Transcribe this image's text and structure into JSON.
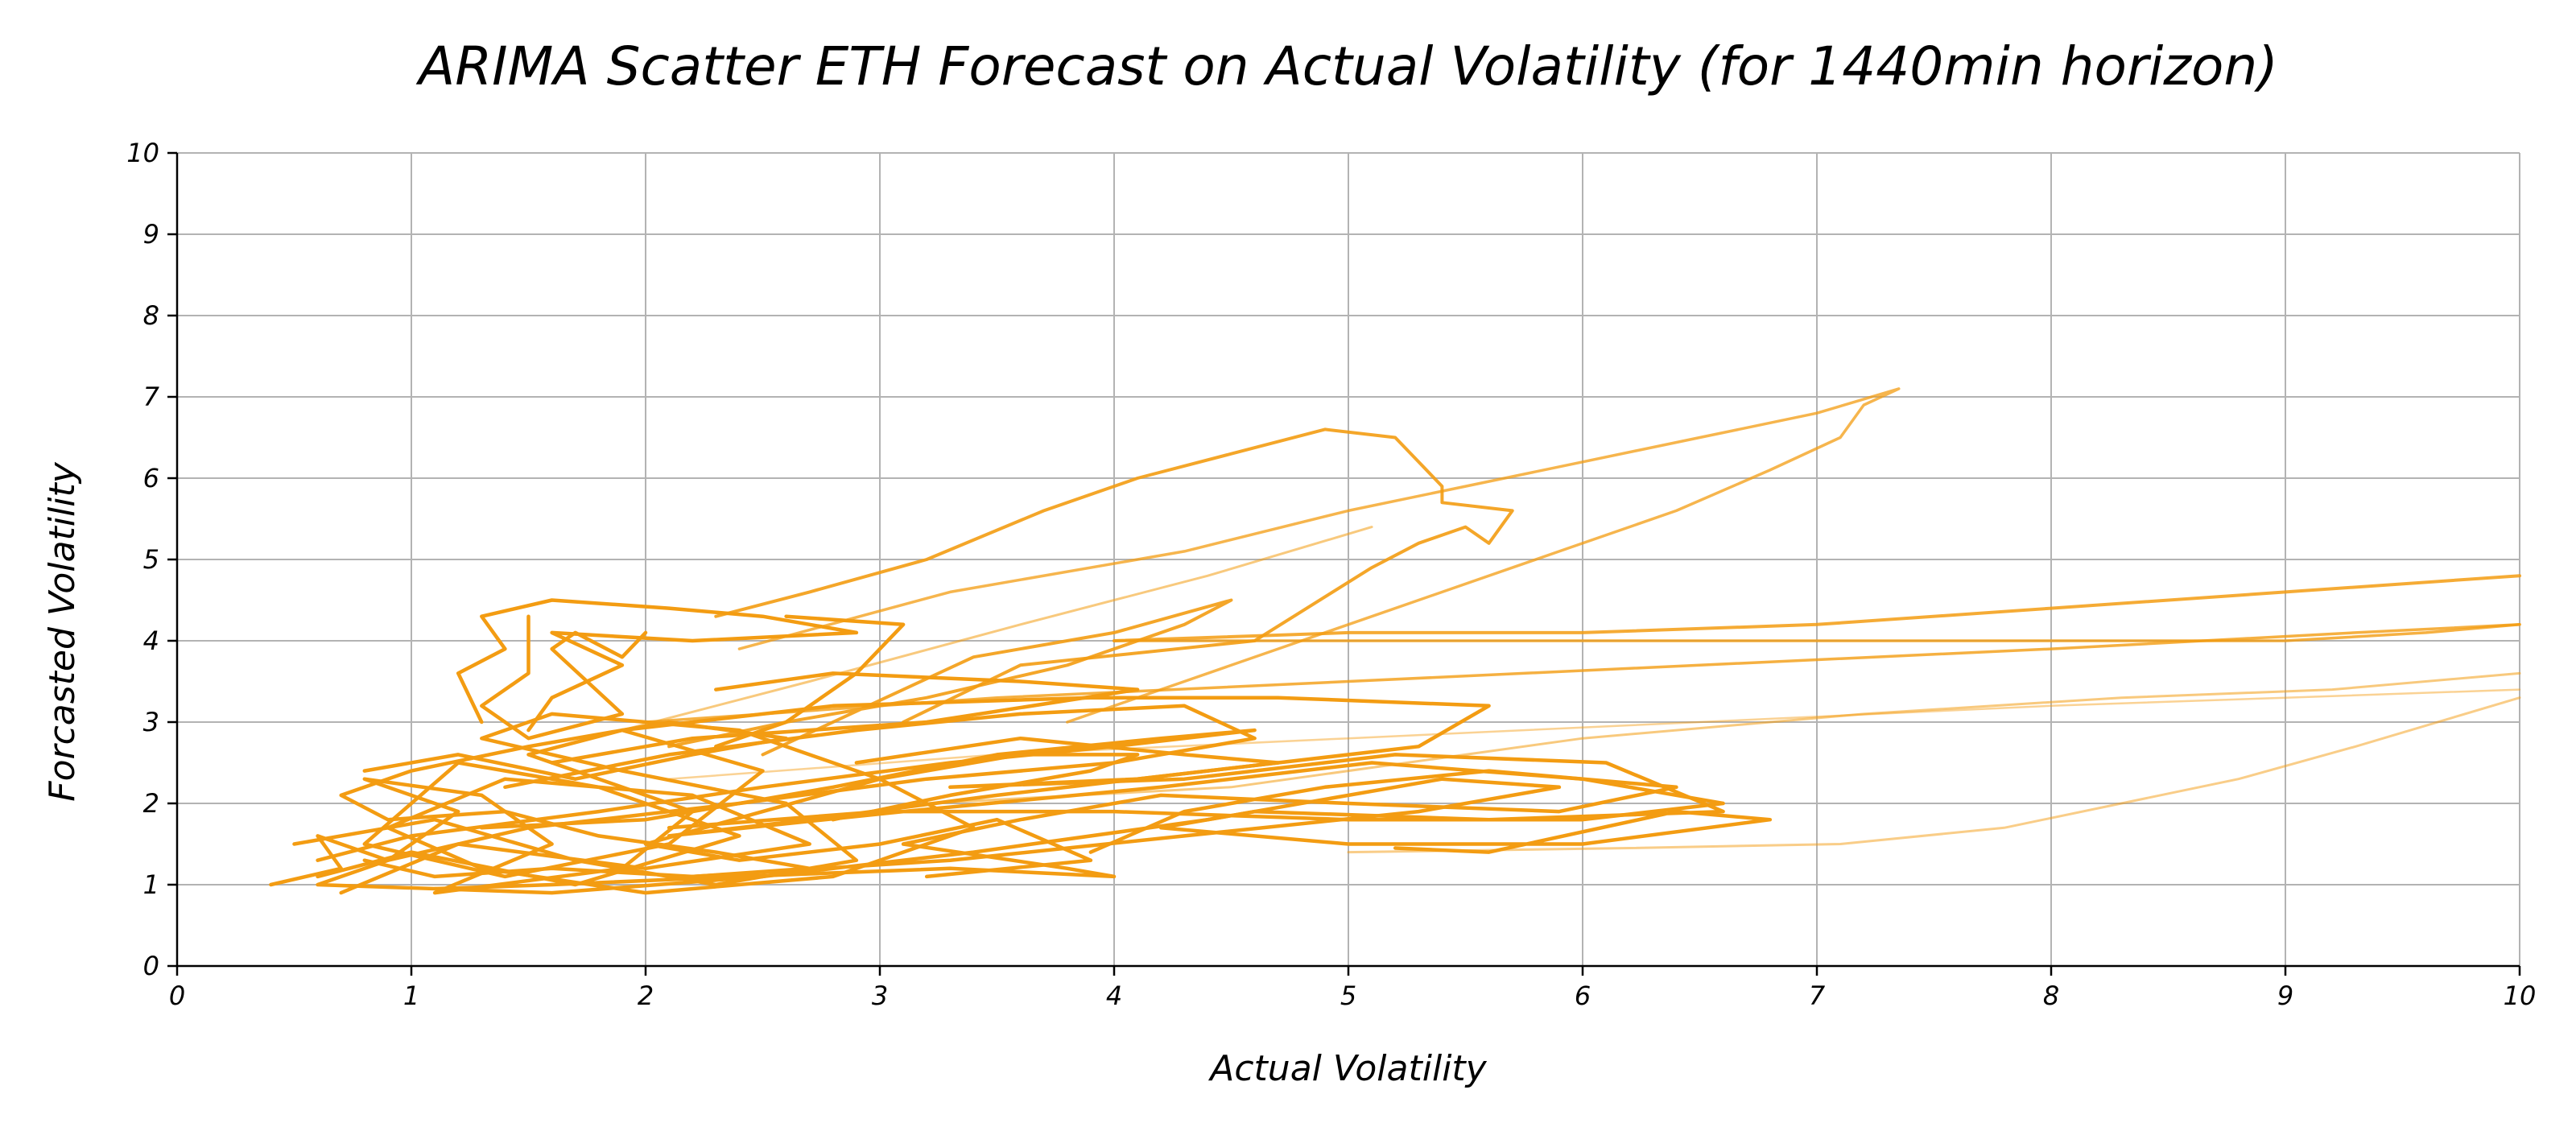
{
  "chart_data": {
    "type": "scatter",
    "title": "ARIMA Scatter ETH Forecast on Actual Volatility (for 1440min horizon)",
    "xlabel": "Actual Volatility",
    "ylabel": "Forcasted Volatility",
    "xlim": [
      0,
      10
    ],
    "ylim": [
      0,
      10
    ],
    "xticks": [
      "0",
      "1",
      "2",
      "3",
      "4",
      "5",
      "6",
      "7",
      "8",
      "9",
      "10"
    ],
    "yticks": [
      "0",
      "1",
      "2",
      "3",
      "4",
      "5",
      "6",
      "7",
      "8",
      "9",
      "10"
    ],
    "grid": true,
    "legend": "none",
    "color": "#f39c12",
    "series": [
      {
        "opacity": 1.0,
        "width": 4.5,
        "points": [
          [
            0.4,
            1.0
          ],
          [
            0.7,
            1.2
          ],
          [
            0.6,
            1.6
          ],
          [
            0.9,
            1.3
          ],
          [
            1.2,
            1.9
          ],
          [
            0.8,
            2.3
          ],
          [
            1.3,
            2.1
          ],
          [
            1.6,
            1.5
          ],
          [
            1.1,
            0.9
          ],
          [
            1.9,
            1.2
          ],
          [
            2.2,
            1.9
          ],
          [
            1.5,
            2.6
          ],
          [
            1.9,
            2.9
          ],
          [
            2.5,
            2.4
          ],
          [
            2.1,
            1.5
          ],
          [
            1.4,
            1.1
          ],
          [
            0.8,
            1.5
          ],
          [
            1.2,
            2.5
          ],
          [
            1.8,
            2.2
          ],
          [
            2.4,
            1.6
          ],
          [
            1.7,
            1.0
          ],
          [
            1.0,
            1.4
          ],
          [
            0.6,
            1.1
          ]
        ]
      },
      {
        "opacity": 1.0,
        "width": 4.5,
        "points": [
          [
            0.5,
            1.5
          ],
          [
            1.1,
            1.8
          ],
          [
            1.7,
            1.3
          ],
          [
            2.3,
            1.0
          ],
          [
            2.9,
            1.3
          ],
          [
            2.6,
            2.0
          ],
          [
            1.9,
            2.4
          ],
          [
            1.3,
            2.8
          ],
          [
            1.6,
            3.1
          ],
          [
            2.4,
            2.9
          ],
          [
            3.0,
            2.3
          ],
          [
            3.4,
            1.7
          ],
          [
            2.8,
            1.1
          ],
          [
            2.0,
            0.9
          ],
          [
            1.3,
            1.2
          ],
          [
            0.9,
            1.7
          ],
          [
            1.4,
            2.3
          ],
          [
            2.2,
            2.1
          ],
          [
            2.7,
            1.5
          ],
          [
            2.0,
            1.2
          ],
          [
            1.2,
            1.5
          ],
          [
            0.7,
            0.9
          ]
        ]
      },
      {
        "opacity": 1.0,
        "width": 4.5,
        "points": [
          [
            1.3,
            3.0
          ],
          [
            1.2,
            3.6
          ],
          [
            1.4,
            3.9
          ],
          [
            1.3,
            4.3
          ],
          [
            1.6,
            4.5
          ],
          [
            2.1,
            4.4
          ],
          [
            2.5,
            4.3
          ],
          [
            2.9,
            4.1
          ],
          [
            2.2,
            4.0
          ],
          [
            1.6,
            4.1
          ],
          [
            1.9,
            3.7
          ],
          [
            1.6,
            3.3
          ],
          [
            1.5,
            2.9
          ]
        ]
      },
      {
        "opacity": 1.0,
        "width": 4.5,
        "points": [
          [
            1.5,
            4.3
          ],
          [
            1.5,
            3.6
          ],
          [
            1.3,
            3.2
          ],
          [
            1.5,
            2.8
          ],
          [
            1.9,
            3.1
          ],
          [
            1.6,
            3.9
          ],
          [
            1.7,
            4.1
          ],
          [
            1.9,
            3.8
          ],
          [
            2.0,
            4.1
          ]
        ]
      },
      {
        "opacity": 1.0,
        "width": 4.5,
        "points": [
          [
            2.6,
            4.3
          ],
          [
            3.1,
            4.2
          ],
          [
            2.9,
            3.6
          ],
          [
            2.6,
            3.0
          ],
          [
            2.3,
            2.7
          ]
        ]
      },
      {
        "opacity": 1.0,
        "width": 4.5,
        "points": [
          [
            2.3,
            3.4
          ],
          [
            2.8,
            3.6
          ],
          [
            3.6,
            3.5
          ],
          [
            4.1,
            3.4
          ],
          [
            3.2,
            3.0
          ],
          [
            2.2,
            2.8
          ],
          [
            1.6,
            2.5
          ]
        ]
      },
      {
        "opacity": 1.0,
        "width": 4.5,
        "points": [
          [
            1.4,
            2.2
          ],
          [
            2.1,
            2.6
          ],
          [
            2.9,
            2.9
          ],
          [
            3.6,
            3.1
          ],
          [
            4.3,
            3.2
          ],
          [
            4.6,
            2.8
          ],
          [
            4.0,
            2.5
          ],
          [
            3.2,
            2.3
          ],
          [
            2.4,
            2.0
          ],
          [
            1.5,
            1.7
          ],
          [
            0.9,
            1.3
          ],
          [
            0.6,
            1.0
          ],
          [
            1.6,
            0.9
          ],
          [
            2.5,
            1.1
          ],
          [
            3.4,
            1.4
          ],
          [
            4.4,
            1.8
          ],
          [
            5.4,
            2.3
          ],
          [
            5.9,
            2.2
          ],
          [
            5.3,
            1.9
          ],
          [
            4.3,
            1.6
          ],
          [
            3.3,
            1.3
          ],
          [
            2.2,
            1.1
          ]
        ]
      },
      {
        "opacity": 1.0,
        "width": 4.5,
        "points": [
          [
            1.9,
            2.9
          ],
          [
            2.8,
            3.2
          ],
          [
            3.9,
            3.3
          ],
          [
            4.7,
            3.3
          ],
          [
            5.6,
            3.2
          ],
          [
            5.3,
            2.7
          ],
          [
            4.4,
            2.4
          ],
          [
            3.5,
            2.1
          ],
          [
            2.7,
            1.8
          ],
          [
            2.1,
            1.6
          ],
          [
            3.1,
            1.9
          ],
          [
            4.2,
            2.2
          ],
          [
            5.1,
            2.5
          ],
          [
            6.0,
            2.3
          ],
          [
            6.6,
            2.0
          ],
          [
            6.0,
            1.8
          ],
          [
            5.0,
            1.8
          ],
          [
            4.0,
            1.9
          ],
          [
            3.0,
            1.9
          ],
          [
            2.1,
            1.7
          ]
        ]
      },
      {
        "opacity": 1.0,
        "width": 4.5,
        "points": [
          [
            2.9,
            2.5
          ],
          [
            3.6,
            2.8
          ],
          [
            4.3,
            2.6
          ],
          [
            4.7,
            2.5
          ],
          [
            4.1,
            2.3
          ],
          [
            3.3,
            2.2
          ],
          [
            4.3,
            2.3
          ],
          [
            5.2,
            2.6
          ],
          [
            6.1,
            2.5
          ],
          [
            6.6,
            1.9
          ],
          [
            5.6,
            1.8
          ],
          [
            4.6,
            1.9
          ],
          [
            4.2,
            1.7
          ],
          [
            5.0,
            1.5
          ],
          [
            6.0,
            1.5
          ],
          [
            6.8,
            1.8
          ],
          [
            6.4,
            1.9
          ],
          [
            5.6,
            1.4
          ],
          [
            5.2,
            1.45
          ]
        ]
      },
      {
        "opacity": 1.0,
        "width": 4.5,
        "points": [
          [
            3.9,
            1.4
          ],
          [
            4.3,
            1.9
          ],
          [
            4.9,
            2.2
          ],
          [
            5.6,
            2.4
          ],
          [
            6.4,
            2.2
          ],
          [
            5.9,
            1.9
          ],
          [
            5.0,
            2.0
          ],
          [
            4.2,
            2.1
          ],
          [
            3.6,
            1.8
          ],
          [
            3.1,
            1.5
          ],
          [
            3.8,
            1.2
          ],
          [
            4.0,
            1.1
          ],
          [
            3.3,
            1.2
          ],
          [
            2.4,
            1.1
          ],
          [
            1.6,
            1.0
          ],
          [
            1.1,
            0.95
          ]
        ]
      },
      {
        "opacity": 1.0,
        "width": 4.5,
        "points": [
          [
            1.3,
            1.7
          ],
          [
            2.0,
            1.8
          ],
          [
            2.8,
            2.2
          ],
          [
            3.5,
            2.6
          ],
          [
            4.2,
            2.8
          ],
          [
            4.6,
            2.9
          ],
          [
            4.0,
            2.7
          ],
          [
            3.3,
            2.5
          ],
          [
            2.5,
            2.2
          ],
          [
            1.8,
            1.9
          ],
          [
            1.0,
            1.6
          ],
          [
            0.6,
            1.3
          ]
        ]
      },
      {
        "opacity": 1.0,
        "width": 4.5,
        "points": [
          [
            2.8,
            1.8
          ],
          [
            3.3,
            2.1
          ],
          [
            3.9,
            2.4
          ],
          [
            4.1,
            2.6
          ],
          [
            3.6,
            2.6
          ],
          [
            3.0,
            2.3
          ],
          [
            2.5,
            1.9
          ],
          [
            2.0,
            1.5
          ],
          [
            2.4,
            1.3
          ],
          [
            3.0,
            1.5
          ],
          [
            3.5,
            1.8
          ],
          [
            3.9,
            1.3
          ],
          [
            3.2,
            1.1
          ]
        ]
      },
      {
        "opacity": 1.0,
        "width": 4.5,
        "points": [
          [
            0.8,
            2.4
          ],
          [
            1.2,
            2.6
          ],
          [
            1.7,
            2.3
          ],
          [
            2.2,
            2.6
          ],
          [
            2.6,
            2.8
          ],
          [
            2.1,
            3.0
          ],
          [
            1.5,
            2.7
          ],
          [
            1.0,
            2.4
          ],
          [
            0.7,
            2.1
          ],
          [
            0.9,
            1.8
          ],
          [
            1.4,
            1.9
          ],
          [
            1.8,
            1.6
          ],
          [
            2.3,
            1.4
          ],
          [
            2.7,
            1.2
          ],
          [
            2.2,
            1.1
          ],
          [
            1.6,
            1.2
          ],
          [
            1.1,
            1.1
          ],
          [
            0.8,
            1.3
          ]
        ]
      },
      {
        "opacity": 0.9,
        "width": 4.0,
        "points": [
          [
            2.5,
            2.6
          ],
          [
            3.4,
            3.8
          ],
          [
            4.0,
            4.1
          ],
          [
            4.5,
            4.5
          ],
          [
            4.3,
            4.2
          ],
          [
            3.8,
            3.7
          ],
          [
            3.2,
            3.3
          ],
          [
            2.6,
            3.0
          ],
          [
            2.1,
            2.7
          ]
        ]
      },
      {
        "opacity": 0.9,
        "width": 4.0,
        "points": [
          [
            3.1,
            3.0
          ],
          [
            3.6,
            3.7
          ],
          [
            4.6,
            4.0
          ],
          [
            5.1,
            4.9
          ],
          [
            5.3,
            5.2
          ],
          [
            5.5,
            5.4
          ],
          [
            5.6,
            5.2
          ],
          [
            5.7,
            5.6
          ],
          [
            5.4,
            5.7
          ],
          [
            5.4,
            5.9
          ],
          [
            5.3,
            6.2
          ],
          [
            5.2,
            6.5
          ],
          [
            4.9,
            6.6
          ],
          [
            4.5,
            6.3
          ],
          [
            4.1,
            6.0
          ],
          [
            3.7,
            5.6
          ],
          [
            3.2,
            5.0
          ],
          [
            2.7,
            4.6
          ],
          [
            2.3,
            4.3
          ]
        ]
      },
      {
        "opacity": 0.85,
        "width": 4.0,
        "points": [
          [
            4.0,
            4.0
          ],
          [
            5.0,
            4.1
          ],
          [
            6.0,
            4.1
          ],
          [
            7.0,
            4.2
          ],
          [
            8.0,
            4.4
          ],
          [
            9.0,
            4.6
          ],
          [
            10.0,
            4.8
          ]
        ]
      },
      {
        "opacity": 0.8,
        "width": 3.5,
        "points": [
          [
            4.0,
            4.0
          ],
          [
            4.8,
            4.0
          ],
          [
            6.0,
            4.0
          ],
          [
            8.0,
            4.0
          ],
          [
            9.0,
            4.0
          ],
          [
            9.6,
            4.1
          ],
          [
            10.0,
            4.2
          ]
        ]
      },
      {
        "opacity": 0.8,
        "width": 3.5,
        "points": [
          [
            2.0,
            3.0
          ],
          [
            3.5,
            3.3
          ],
          [
            5.0,
            3.5
          ],
          [
            6.5,
            3.7
          ],
          [
            8.0,
            3.9
          ],
          [
            9.3,
            4.1
          ],
          [
            10.0,
            4.2
          ]
        ]
      },
      {
        "opacity": 0.75,
        "width": 3.5,
        "points": [
          [
            2.4,
            3.9
          ],
          [
            3.3,
            4.6
          ],
          [
            4.3,
            5.1
          ],
          [
            5.0,
            5.6
          ],
          [
            5.5,
            5.9
          ],
          [
            6.0,
            6.2
          ],
          [
            6.5,
            6.5
          ],
          [
            7.0,
            6.8
          ],
          [
            7.35,
            7.1
          ],
          [
            7.2,
            6.9
          ],
          [
            7.1,
            6.5
          ],
          [
            6.8,
            6.1
          ],
          [
            6.4,
            5.6
          ],
          [
            5.9,
            5.1
          ],
          [
            5.3,
            4.5
          ],
          [
            4.8,
            4.0
          ],
          [
            4.3,
            3.5
          ],
          [
            3.8,
            3.0
          ]
        ]
      },
      {
        "opacity": 0.55,
        "width": 3.0,
        "points": [
          [
            1.9,
            2.9
          ],
          [
            2.7,
            3.5
          ],
          [
            3.6,
            4.2
          ],
          [
            4.4,
            4.8
          ],
          [
            5.1,
            5.4
          ]
        ]
      },
      {
        "opacity": 0.55,
        "width": 3.0,
        "points": [
          [
            3.2,
            2.0
          ],
          [
            4.5,
            2.2
          ],
          [
            6.0,
            2.8
          ],
          [
            7.2,
            3.1
          ],
          [
            8.3,
            3.3
          ],
          [
            9.2,
            3.4
          ],
          [
            10.0,
            3.6
          ]
        ]
      },
      {
        "opacity": 0.5,
        "width": 3.0,
        "points": [
          [
            5.0,
            1.4
          ],
          [
            6.2,
            1.45
          ],
          [
            7.1,
            1.5
          ],
          [
            7.8,
            1.7
          ],
          [
            8.3,
            2.0
          ],
          [
            8.8,
            2.3
          ],
          [
            9.3,
            2.7
          ],
          [
            10.0,
            3.3
          ]
        ]
      },
      {
        "opacity": 0.45,
        "width": 2.5,
        "points": [
          [
            2.1,
            2.3
          ],
          [
            3.5,
            2.6
          ],
          [
            5.0,
            2.8
          ],
          [
            6.5,
            3.0
          ],
          [
            8.0,
            3.2
          ],
          [
            9.0,
            3.3
          ],
          [
            10.0,
            3.4
          ]
        ]
      }
    ]
  }
}
